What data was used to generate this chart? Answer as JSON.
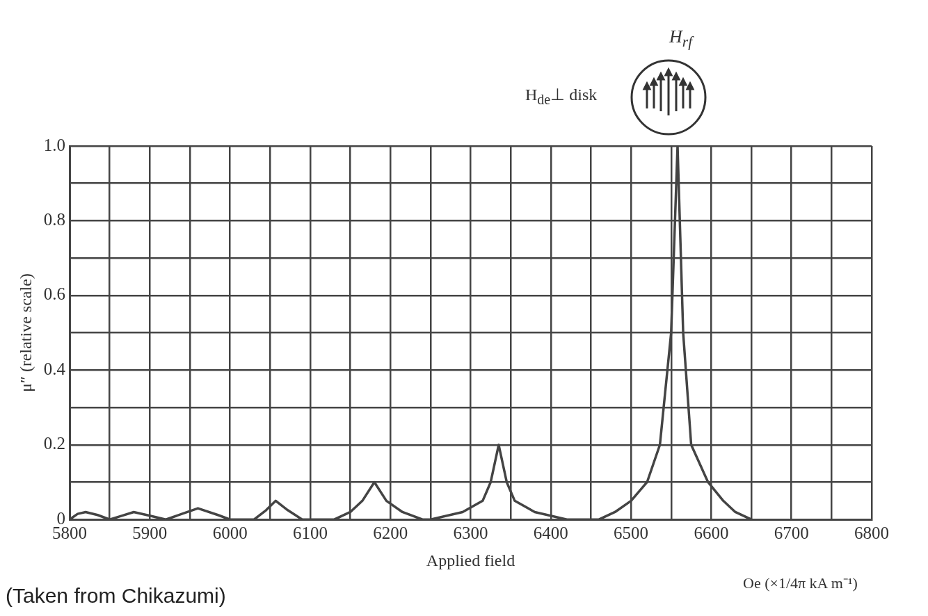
{
  "chart_data": {
    "type": "line",
    "xlabel": "Applied field",
    "ylabel": "μ″ (relative scale)",
    "annotations": [
      "H$_{rf}$",
      "H$_{de}$⊥ disk",
      "Oe (×1/4π kA m⁻¹)",
      "(Taken from Chikazumi)"
    ],
    "x": [
      5800,
      5810,
      5820,
      5835,
      5850,
      5865,
      5880,
      5900,
      5920,
      5940,
      5960,
      5985,
      6000,
      6030,
      6045,
      6057,
      6072,
      6090,
      6130,
      6150,
      6165,
      6180,
      6195,
      6215,
      6240,
      6250,
      6290,
      6315,
      6325,
      6335,
      6345,
      6355,
      6380,
      6420,
      6460,
      6480,
      6500,
      6520,
      6536,
      6550,
      6558,
      6565,
      6575,
      6596,
      6615,
      6630,
      6650
    ],
    "series": [
      {
        "color": "#444444",
        "values": [
          0,
          0.015,
          0.02,
          0.012,
          0,
          0.01,
          0.02,
          0.01,
          0,
          0.015,
          0.03,
          0.012,
          0,
          0,
          0.025,
          0.05,
          0.025,
          0,
          0,
          0.02,
          0.05,
          0.1,
          0.05,
          0.02,
          0,
          0,
          0.02,
          0.05,
          0.1,
          0.2,
          0.1,
          0.05,
          0.02,
          0,
          0,
          0.02,
          0.05,
          0.1,
          0.2,
          0.5,
          1.0,
          0.5,
          0.2,
          0.1,
          0.05,
          0.02,
          0
        ]
      }
    ],
    "xlim": [
      5800,
      6800
    ],
    "xticks": [
      5800,
      {
        "value": 5850,
        "label": null
      },
      5900,
      {
        "value": 5950,
        "label": null
      },
      6000,
      {
        "value": 6050,
        "label": null
      },
      6100,
      {
        "value": 6150,
        "label": null
      },
      6200,
      {
        "value": 6250,
        "label": null
      },
      6300,
      {
        "value": 6350,
        "label": null
      },
      6400,
      {
        "value": 6450,
        "label": null
      },
      6500,
      {
        "value": 6550,
        "label": null
      },
      6600,
      {
        "value": 6650,
        "label": null
      },
      6700,
      {
        "value": 6750,
        "label": null
      },
      6800
    ],
    "ylim": [
      0,
      1
    ],
    "yticks": [
      0,
      {
        "value": 0.1,
        "label": null
      },
      0.2,
      {
        "value": 0.3,
        "label": null
      },
      0.4,
      {
        "value": 0.5,
        "label": null
      },
      0.6,
      {
        "value": 0.7,
        "label": null
      },
      0.8,
      {
        "value": 0.9,
        "label": null
      },
      {
        "value": 1,
        "label": "1.0"
      }
    ],
    "grid": true,
    "legend": false,
    "marker": "none",
    "line_style": "solid"
  }
}
